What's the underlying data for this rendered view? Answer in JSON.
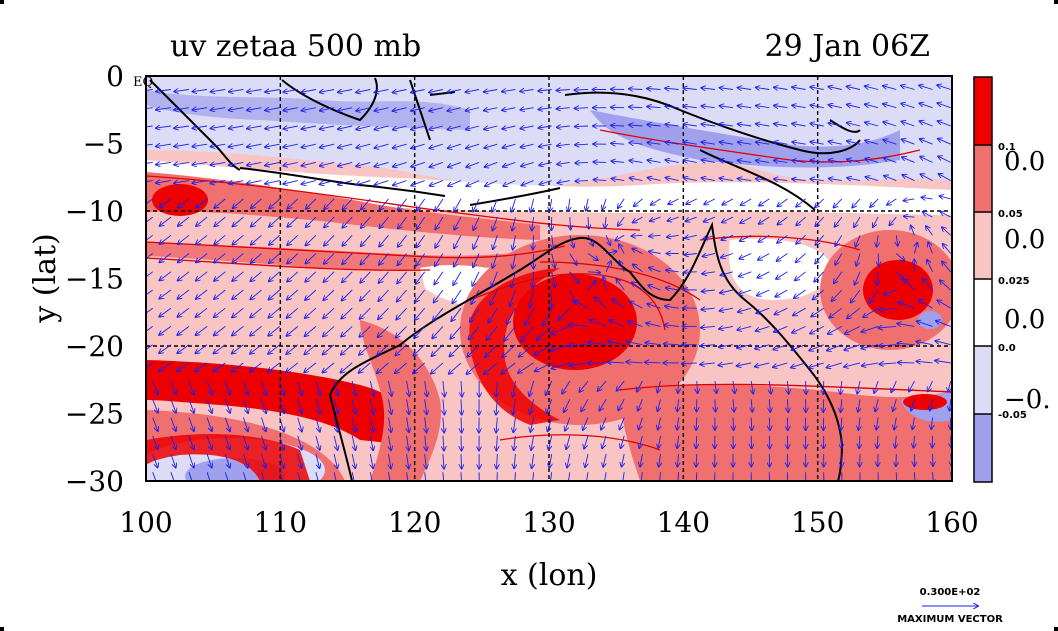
{
  "header": {
    "title_left": "uv zetaa 500 mb",
    "title_right": "29 Jan 06Z"
  },
  "axes": {
    "x_label": "x (lon)",
    "y_label": "y (lat)",
    "x_ticks": [
      "100",
      "110",
      "120",
      "130",
      "140",
      "150",
      "160"
    ],
    "y_ticks": [
      "0",
      "−5",
      "−10",
      "−15",
      "−20",
      "−25",
      "−30"
    ],
    "eq_label": "EQ",
    "x_range": [
      100,
      160
    ],
    "y_range": [
      -30,
      0
    ]
  },
  "colorbar": {
    "small_labels": [
      "0.1",
      "0.05",
      "0.025",
      "0.0",
      "-0.05"
    ],
    "big_labels": [
      "0.0",
      "0.0",
      "0.0",
      "−0."
    ],
    "colors": [
      "#ee0000",
      "#f07070",
      "#f8c4c4",
      "#ffffff",
      "#dcdcf6",
      "#a0a0ec"
    ]
  },
  "vector_key": {
    "value": "0.300E+02",
    "caption": "MAXIMUM VECTOR"
  },
  "colors": {
    "vector": "#1a22ee",
    "contour": "#e00000",
    "coast": "#000000",
    "strong_pos": "#ee0000",
    "pos": "#f07070",
    "weak_pos": "#f8c4c4",
    "weak_neg": "#dcdcf6",
    "neg": "#a0a0ec"
  }
}
